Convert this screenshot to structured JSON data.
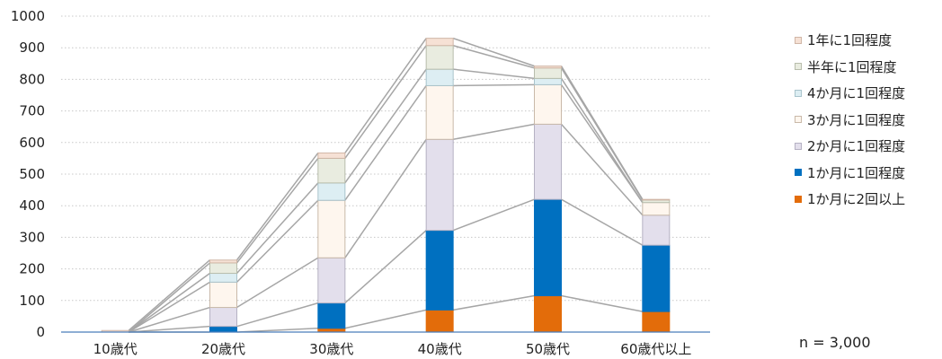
{
  "chart_data": {
    "type": "bar",
    "stacked": true,
    "categories": [
      "10歳代",
      "20歳代",
      "30歳代",
      "40歳代",
      "50歳代",
      "60歳代以上"
    ],
    "series": [
      {
        "name": "1か月に2回以上",
        "color": "#E36C0A",
        "border": "#E36C0A",
        "values": [
          0,
          0,
          12,
          70,
          115,
          65
        ]
      },
      {
        "name": "1か月に1回程度",
        "color": "#0070C0",
        "border": "#0070C0",
        "values": [
          0,
          18,
          80,
          252,
          305,
          210
        ]
      },
      {
        "name": "2か月に1回程度",
        "color": "#E3DFEC",
        "border": "#B5B1C3",
        "values": [
          0,
          60,
          143,
          288,
          238,
          95
        ]
      },
      {
        "name": "3か月に1回程度",
        "color": "#FEF6EE",
        "border": "#C9B9A9",
        "values": [
          0,
          80,
          182,
          170,
          125,
          40
        ]
      },
      {
        "name": "4か月に1回程度",
        "color": "#DDEEF3",
        "border": "#A9C4CC",
        "values": [
          0,
          28,
          55,
          52,
          20,
          0
        ]
      },
      {
        "name": "半年に1回程度",
        "color": "#E9ECE0",
        "border": "#B8BDAC",
        "values": [
          0,
          33,
          78,
          75,
          33,
          8
        ]
      },
      {
        "name": "1年に1回程度",
        "color": "#F6E1D5",
        "border": "#D0B6A6",
        "values": [
          5,
          9,
          17,
          23,
          6,
          2
        ]
      }
    ],
    "legend_order": [
      "1年に1回程度",
      "半年に1回程度",
      "4か月に1回程度",
      "3か月に1回程度",
      "2か月に1回程度",
      "1か月に1回程度",
      "1か月に2回以上"
    ],
    "yticks": [
      "0",
      "100",
      "200",
      "300",
      "400",
      "500",
      "600",
      "700",
      "800",
      "900",
      "1000"
    ],
    "ylim": [
      0,
      1000
    ],
    "grid": true,
    "series_lines": true,
    "legend_position": "right",
    "note": "n = 3,000"
  }
}
